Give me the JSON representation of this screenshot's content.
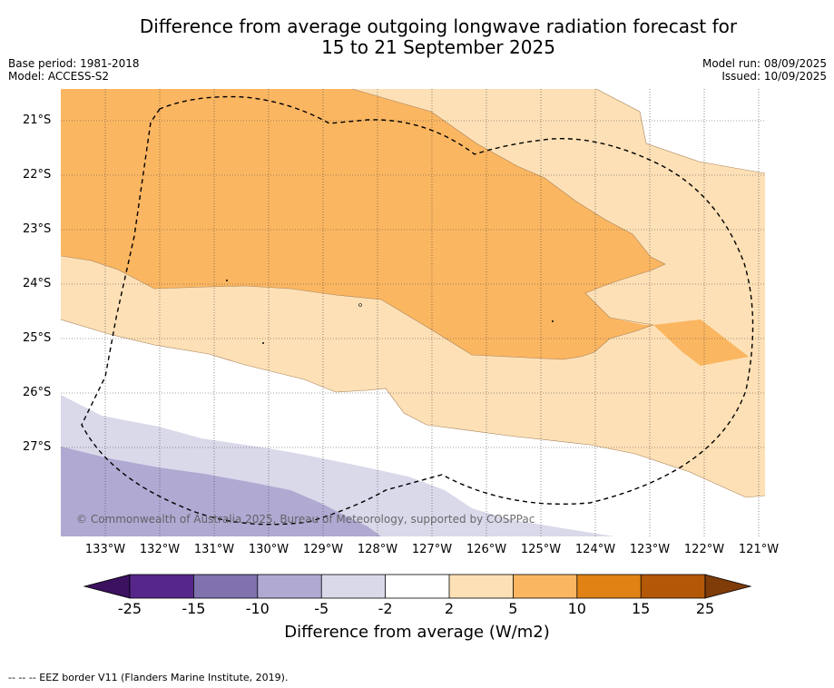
{
  "title_line1": "Difference from average outgoing longwave radiation forecast for",
  "title_line2": "15 to 21 September 2025",
  "base_period": "Base period: 1981-2018",
  "model": "Model: ACCESS-S2",
  "model_run": "Model run: 08/09/2025",
  "issued": "Issued: 10/09/2025",
  "lat_ticks": [
    "21°S",
    "22°S",
    "23°S",
    "24°S",
    "25°S",
    "26°S",
    "27°S"
  ],
  "lon_ticks": [
    "133°W",
    "132°W",
    "131°W",
    "130°W",
    "129°W",
    "128°W",
    "127°W",
    "126°W",
    "125°W",
    "124°W",
    "123°W",
    "122°W",
    "121°W"
  ],
  "copyright": "© Commonwealth of Australia 2025, Bureau of Meteorology, supported by COSPPac",
  "colorbar": {
    "ticks": [
      "-25",
      "-15",
      "-10",
      "-5",
      "-2",
      "2",
      "5",
      "10",
      "15",
      "25"
    ],
    "colors": [
      "#3b1160",
      "#57268a",
      "#7f72ad",
      "#b0a9d2",
      "#d9d9ea",
      "#ffffff",
      "#fde0b6",
      "#fbb661",
      "#e08214",
      "#b35806",
      "#7f3b08"
    ],
    "label": "Difference from average (W/m2)"
  },
  "footer": "--  --  -- EEZ border V11 (Flanders Marine Institute, 2019)."
}
